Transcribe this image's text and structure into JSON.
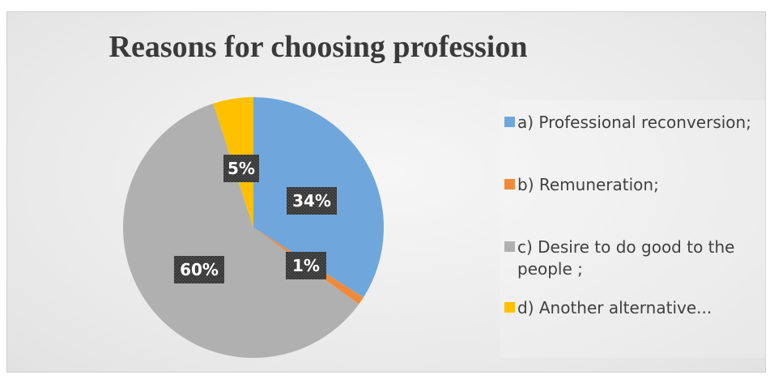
{
  "chart_data": {
    "type": "pie",
    "title": "Reasons for choosing profession",
    "start_angle_deg": 0,
    "direction": "clockwise",
    "legend_position": "right",
    "slices": [
      {
        "label": "a) Professional reconversion;",
        "value": 34,
        "data_label": "34%",
        "color": "#6fa7dc"
      },
      {
        "label": "b) Remuneration;",
        "value": 1,
        "data_label": "1%",
        "color": "#f08a3a"
      },
      {
        "label": "c) Desire to do good to the people ;",
        "value": 60,
        "data_label": "60%",
        "color": "#b0b0b0"
      },
      {
        "label": "d) Another alternative...",
        "value": 5,
        "data_label": "5%",
        "color": "#ffc000"
      }
    ]
  }
}
